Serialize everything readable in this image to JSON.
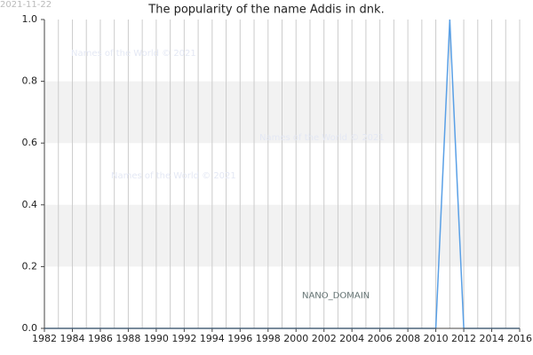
{
  "chart_data": {
    "type": "line",
    "title": "The popularity of the name Addis in dnk.",
    "date": "2021-11-22",
    "annotations": [
      "Names of the World © 2021",
      "Names of the World © 2021",
      "Names of the World © 2021",
      "NANO_DOMAIN"
    ],
    "x": [
      1982,
      1983,
      1984,
      1985,
      1986,
      1987,
      1988,
      1989,
      1990,
      1991,
      1992,
      1993,
      1994,
      1995,
      1996,
      1997,
      1998,
      1999,
      2000,
      2001,
      2002,
      2003,
      2004,
      2005,
      2006,
      2007,
      2008,
      2009,
      2010,
      2011,
      2012,
      2013,
      2014,
      2015,
      2016
    ],
    "series": [
      {
        "name": "Addis",
        "color": "#5aa0e6",
        "values": [
          0,
          0,
          0,
          0,
          0,
          0,
          0,
          0,
          0,
          0,
          0,
          0,
          0,
          0,
          0,
          0,
          0,
          0,
          0,
          0,
          0,
          0,
          0,
          0,
          0,
          0,
          0,
          0,
          0,
          1,
          0,
          0,
          0,
          0,
          0
        ]
      }
    ],
    "xlim": [
      1982,
      2016
    ],
    "xticks": [
      1982,
      1984,
      1986,
      1988,
      1990,
      1992,
      1994,
      1996,
      1998,
      2000,
      2002,
      2004,
      2006,
      2008,
      2010,
      2012,
      2014,
      2016
    ],
    "ylim": [
      0,
      1
    ],
    "yticks": [
      {
        "value": 0,
        "label": "0.0"
      },
      0.2,
      0.4,
      0.6,
      0.8,
      {
        "value": 1,
        "label": "1.0"
      }
    ],
    "grid": true
  }
}
